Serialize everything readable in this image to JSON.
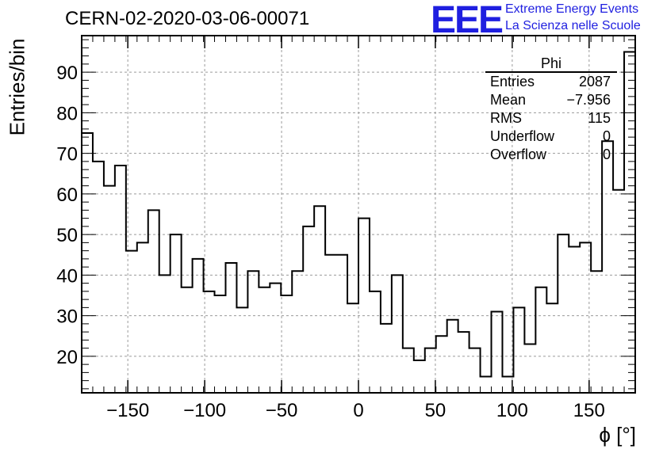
{
  "header": {
    "title": "CERN-02-2020-03-06-00071",
    "logo": "EEE",
    "logo_line1": "Extreme Energy Events",
    "logo_line2": "La Scienza nelle Scuole"
  },
  "stats": {
    "name": "Phi",
    "rows": [
      {
        "label": "Entries",
        "value": "2087"
      },
      {
        "label": "Mean",
        "value": "−7.956"
      },
      {
        "label": "RMS",
        "value": "115"
      },
      {
        "label": "Underflow",
        "value": "0"
      },
      {
        "label": "Overflow",
        "value": "0"
      }
    ]
  },
  "colors": {
    "line": "#000000",
    "grid": "#9a9a9a",
    "logo": "#1f1fe0"
  },
  "chart_data": {
    "type": "histogram",
    "title": "CERN-02-2020-03-06-00071",
    "xlabel": "ϕ [°]",
    "ylabel": "Entries/bin",
    "xlim": [
      -180,
      180
    ],
    "ylim": [
      11,
      99
    ],
    "bin_width": 7.2,
    "xticks": [
      -150,
      -100,
      -50,
      0,
      50,
      100,
      150
    ],
    "yticks": [
      20,
      30,
      40,
      50,
      60,
      70,
      80,
      90
    ],
    "grid": true,
    "values": [
      75,
      68,
      62,
      67,
      46,
      48,
      56,
      40,
      50,
      37,
      44,
      36,
      35,
      43,
      32,
      41,
      37,
      38,
      35,
      41,
      52,
      57,
      45,
      45,
      33,
      54,
      36,
      28,
      40,
      22,
      19,
      22,
      25,
      29,
      26,
      22,
      15,
      31,
      15,
      32,
      23,
      37,
      33,
      50,
      47,
      48,
      41,
      73,
      61,
      95
    ]
  }
}
